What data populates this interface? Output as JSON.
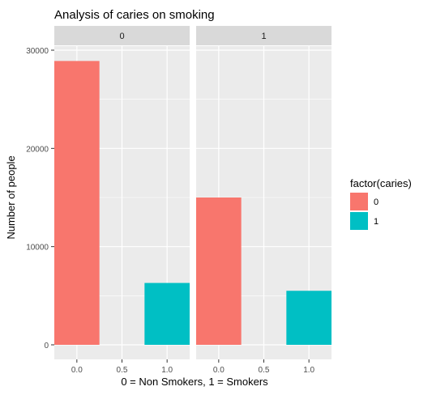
{
  "chart_data": {
    "type": "bar",
    "title": "Analysis of caries on smoking",
    "xlabel": "0 = Non Smokers, 1 = Smokers",
    "ylabel": "Number of people",
    "ylim": [
      0,
      30000
    ],
    "yticks": [
      0,
      10000,
      20000,
      30000
    ],
    "xlim": [
      -0.25,
      1.25
    ],
    "xticks": [
      "0.0",
      "0.5",
      "1.0"
    ],
    "bar_width": 0.5,
    "grid": true,
    "legend": {
      "title": "factor(caries)",
      "position": "right",
      "entries": [
        {
          "label": "0",
          "color": "#F8766D"
        },
        {
          "label": "1",
          "color": "#00BFC4"
        }
      ]
    },
    "facets": [
      {
        "label": "0",
        "bars": [
          {
            "x": 0.0,
            "caries": "0",
            "value": 28900
          },
          {
            "x": 1.0,
            "caries": "1",
            "value": 6300
          }
        ]
      },
      {
        "label": "1",
        "bars": [
          {
            "x": 0.0,
            "caries": "0",
            "value": 15000
          },
          {
            "x": 1.0,
            "caries": "1",
            "value": 5500
          }
        ]
      }
    ]
  }
}
